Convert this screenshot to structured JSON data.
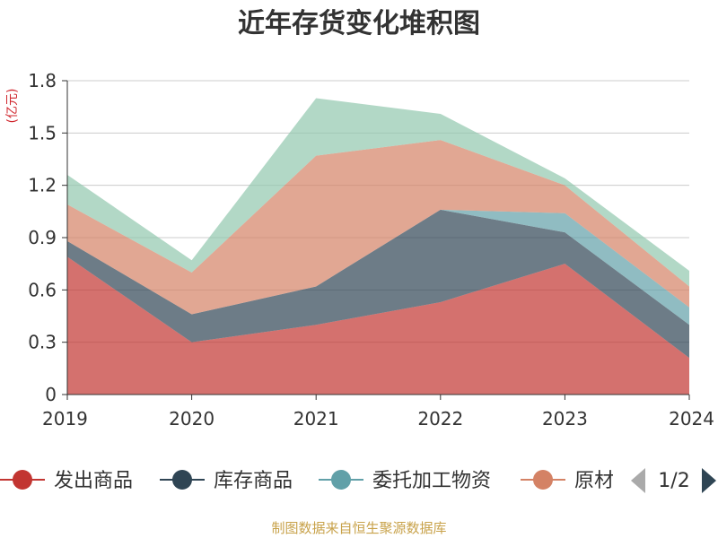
{
  "chart_data": {
    "type": "area",
    "stacked": true,
    "title": "近年存货变化堆积图",
    "ylabel": "(亿元)",
    "categories": [
      "2019",
      "2020",
      "2021",
      "2022",
      "2023",
      "2024"
    ],
    "y_ticks": [
      "0",
      "0.3",
      "0.6",
      "0.9",
      "1.2",
      "1.5",
      "1.8"
    ],
    "ylim": [
      0,
      1.8
    ],
    "grid": true,
    "series": [
      {
        "name": "发出商品",
        "color": "#c23531",
        "values": [
          0.79,
          0.3,
          0.4,
          0.53,
          0.75,
          0.21
        ]
      },
      {
        "name": "库存商品",
        "color": "#2f4554",
        "values": [
          0.09,
          0.16,
          0.22,
          0.53,
          0.18,
          0.19
        ]
      },
      {
        "name": "委托加工物资",
        "color": "#61a0a8",
        "values": [
          0.0,
          0.0,
          0.0,
          0.0,
          0.11,
          0.1
        ]
      },
      {
        "name": "原材料",
        "color": "#d48265",
        "values": [
          0.21,
          0.24,
          0.75,
          0.4,
          0.16,
          0.12
        ]
      },
      {
        "name": "",
        "color": "#91c7ae",
        "values": [
          0.17,
          0.07,
          0.33,
          0.15,
          0.04,
          0.09
        ]
      }
    ],
    "legend": {
      "position": "bottom",
      "visible_items": [
        "发出商品",
        "库存商品",
        "委托加工物资",
        "原材"
      ],
      "page_indicator": "1/2"
    },
    "source_note": "制图数据来自恒生聚源数据库"
  }
}
